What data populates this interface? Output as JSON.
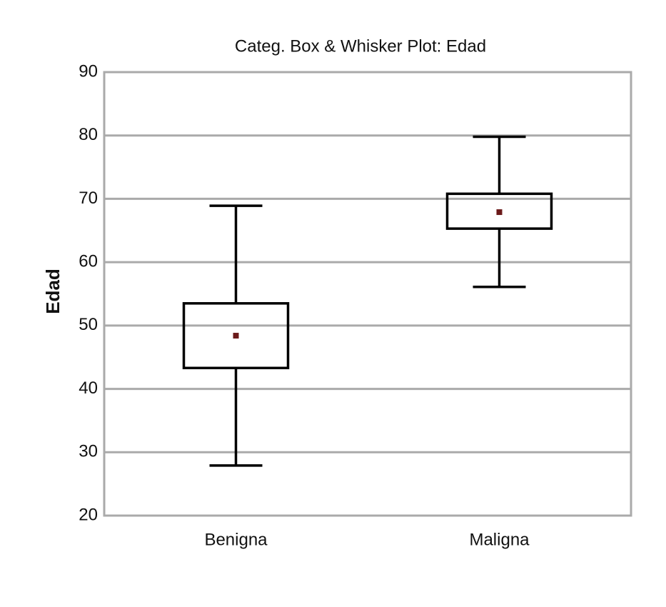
{
  "chart_data": {
    "type": "box",
    "title": "Categ. Box & Whisker Plot: Edad",
    "y_label": "Edad",
    "categories": [
      "Benigna",
      "Maligna"
    ],
    "series": [
      {
        "color": "#000000",
        "marker_color": "#6b1a1a",
        "whisker_low": [
          27.9,
          56.1
        ],
        "box_low": [
          43.3,
          65.3
        ],
        "center": [
          48.4,
          67.9
        ],
        "box_high": [
          53.5,
          70.8
        ],
        "whisker_high": [
          68.9,
          79.8
        ]
      }
    ],
    "ylim": [
      20,
      90
    ],
    "yticks": [
      20,
      30,
      40,
      50,
      60,
      70,
      80,
      90
    ],
    "grid": true
  }
}
